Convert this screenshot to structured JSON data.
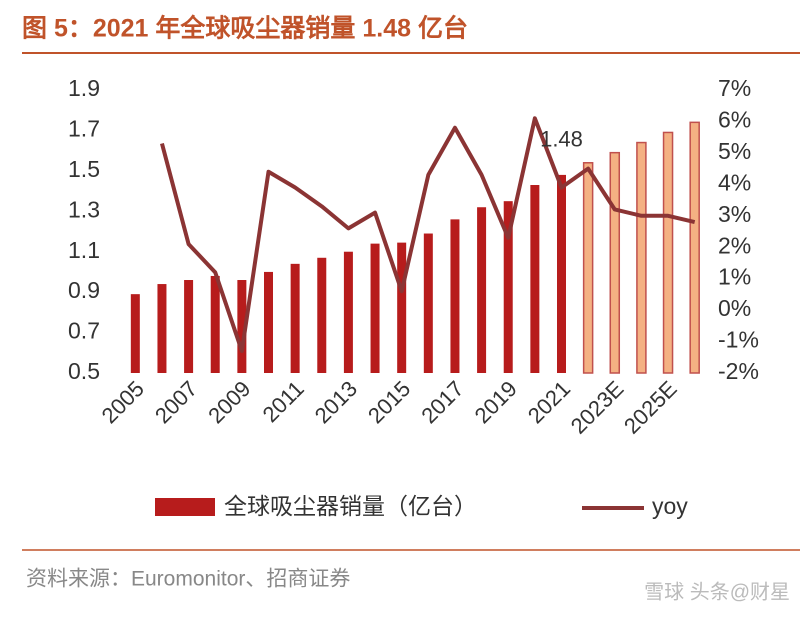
{
  "chart_data": {
    "type": "combo",
    "title": "图 5：2021 年全球吸尘器销量 1.48 亿台",
    "source": "资料来源：Euromonitor、招商证券",
    "watermark": "雪球 头条@财星",
    "categories": [
      "2005",
      null,
      "2007",
      null,
      "2009",
      null,
      "2011",
      null,
      "2013",
      null,
      "2015",
      null,
      "2017",
      null,
      "2019",
      null,
      "2021",
      null,
      "2023E",
      null,
      "2025E",
      null
    ],
    "series": [
      {
        "name": "全球吸尘器销量（亿台）",
        "type": "bar",
        "color": "#b71c1c",
        "colors": [
          "#b71c1c",
          "#b71c1c",
          "#b71c1c",
          "#b71c1c",
          "#b71c1c",
          "#b71c1c",
          "#b71c1c",
          "#b71c1c",
          "#b71c1c",
          "#b71c1c",
          "#b71c1c",
          "#b71c1c",
          "#b71c1c",
          "#b71c1c",
          "#b71c1c",
          "#b71c1c",
          "#b71c1c",
          "#f4b183",
          "#f4b183",
          "#f4b183",
          "#f4b183",
          "#f4b183"
        ],
        "values": [
          0.89,
          0.94,
          0.96,
          0.98,
          0.96,
          1.0,
          1.04,
          1.07,
          1.1,
          1.14,
          1.145,
          1.19,
          1.26,
          1.32,
          1.35,
          1.43,
          1.48,
          1.54,
          1.59,
          1.64,
          1.69,
          1.74
        ]
      },
      {
        "name": "yoy",
        "type": "line",
        "axis": "y2",
        "color": "#8b3434",
        "values": [
          null,
          5.3,
          2.1,
          1.2,
          -1.3,
          4.4,
          3.9,
          3.3,
          2.6,
          3.1,
          0.6,
          4.3,
          5.8,
          4.3,
          2.3,
          6.1,
          3.9,
          4.5,
          3.2,
          3.0,
          3.0,
          2.8
        ]
      }
    ],
    "data_label_index": 16,
    "ylim": [
      0.5,
      1.9
    ],
    "yticks": [
      0.5,
      0.7,
      0.9,
      1.1,
      1.3,
      1.5,
      1.7,
      1.9
    ],
    "y2lim": [
      -2,
      7
    ],
    "y2ticks": [
      {
        "value": -2,
        "label": "-2%"
      },
      {
        "value": -1,
        "label": "-1%"
      },
      {
        "value": 0,
        "label": "0%"
      },
      {
        "value": 1,
        "label": "1%"
      },
      {
        "value": 2,
        "label": "2%"
      },
      {
        "value": 3,
        "label": "3%"
      },
      {
        "value": 4,
        "label": "4%"
      },
      {
        "value": 5,
        "label": "5%"
      },
      {
        "value": 6,
        "label": "6%"
      },
      {
        "value": 7,
        "label": "7%"
      }
    ],
    "grid": false
  }
}
